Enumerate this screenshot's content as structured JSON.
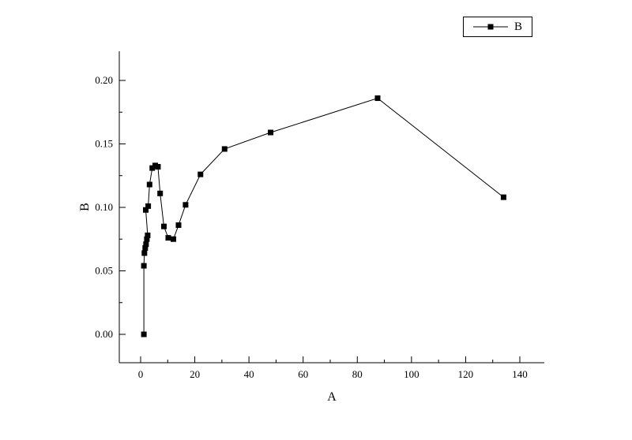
{
  "page": {
    "background": "#ffffff",
    "foreground": "#000000"
  },
  "legend": {
    "label": "B",
    "marker": "filled-square",
    "border_color": "#000000"
  },
  "chart_data": {
    "type": "line",
    "title": "",
    "xlabel": "A",
    "ylabel": "B",
    "grid": false,
    "legend_position": "top-right",
    "axis_color": "#000000",
    "series_color": "#000000",
    "marker": "square",
    "marker_size": 7,
    "xlim": [
      -8,
      149
    ],
    "ylim": [
      -0.022,
      0.222
    ],
    "x_ticks": [
      0,
      20,
      40,
      60,
      80,
      100,
      120,
      140
    ],
    "x_minor_ticks": [
      10,
      30,
      50,
      70,
      90,
      110,
      130
    ],
    "y_ticks": [
      0.0,
      0.05,
      0.1,
      0.15,
      0.2
    ],
    "y_minor_ticks": [
      0.025,
      0.075,
      0.125,
      0.175
    ],
    "series": [
      {
        "name": "B",
        "points": [
          [
            1.2,
            0.0
          ],
          [
            1.2,
            0.054
          ],
          [
            1.4,
            0.064
          ],
          [
            1.7,
            0.068
          ],
          [
            2.0,
            0.071
          ],
          [
            2.3,
            0.075
          ],
          [
            2.6,
            0.078
          ],
          [
            1.9,
            0.098
          ],
          [
            2.8,
            0.101
          ],
          [
            3.3,
            0.118
          ],
          [
            4.3,
            0.131
          ],
          [
            5.4,
            0.133
          ],
          [
            6.4,
            0.132
          ],
          [
            7.2,
            0.111
          ],
          [
            8.6,
            0.085
          ],
          [
            10.2,
            0.076
          ],
          [
            12.1,
            0.075
          ],
          [
            14.0,
            0.086
          ],
          [
            16.6,
            0.102
          ],
          [
            22.1,
            0.126
          ],
          [
            31.0,
            0.146
          ],
          [
            48.0,
            0.159
          ],
          [
            87.5,
            0.186
          ],
          [
            134.0,
            0.108
          ]
        ]
      }
    ]
  }
}
